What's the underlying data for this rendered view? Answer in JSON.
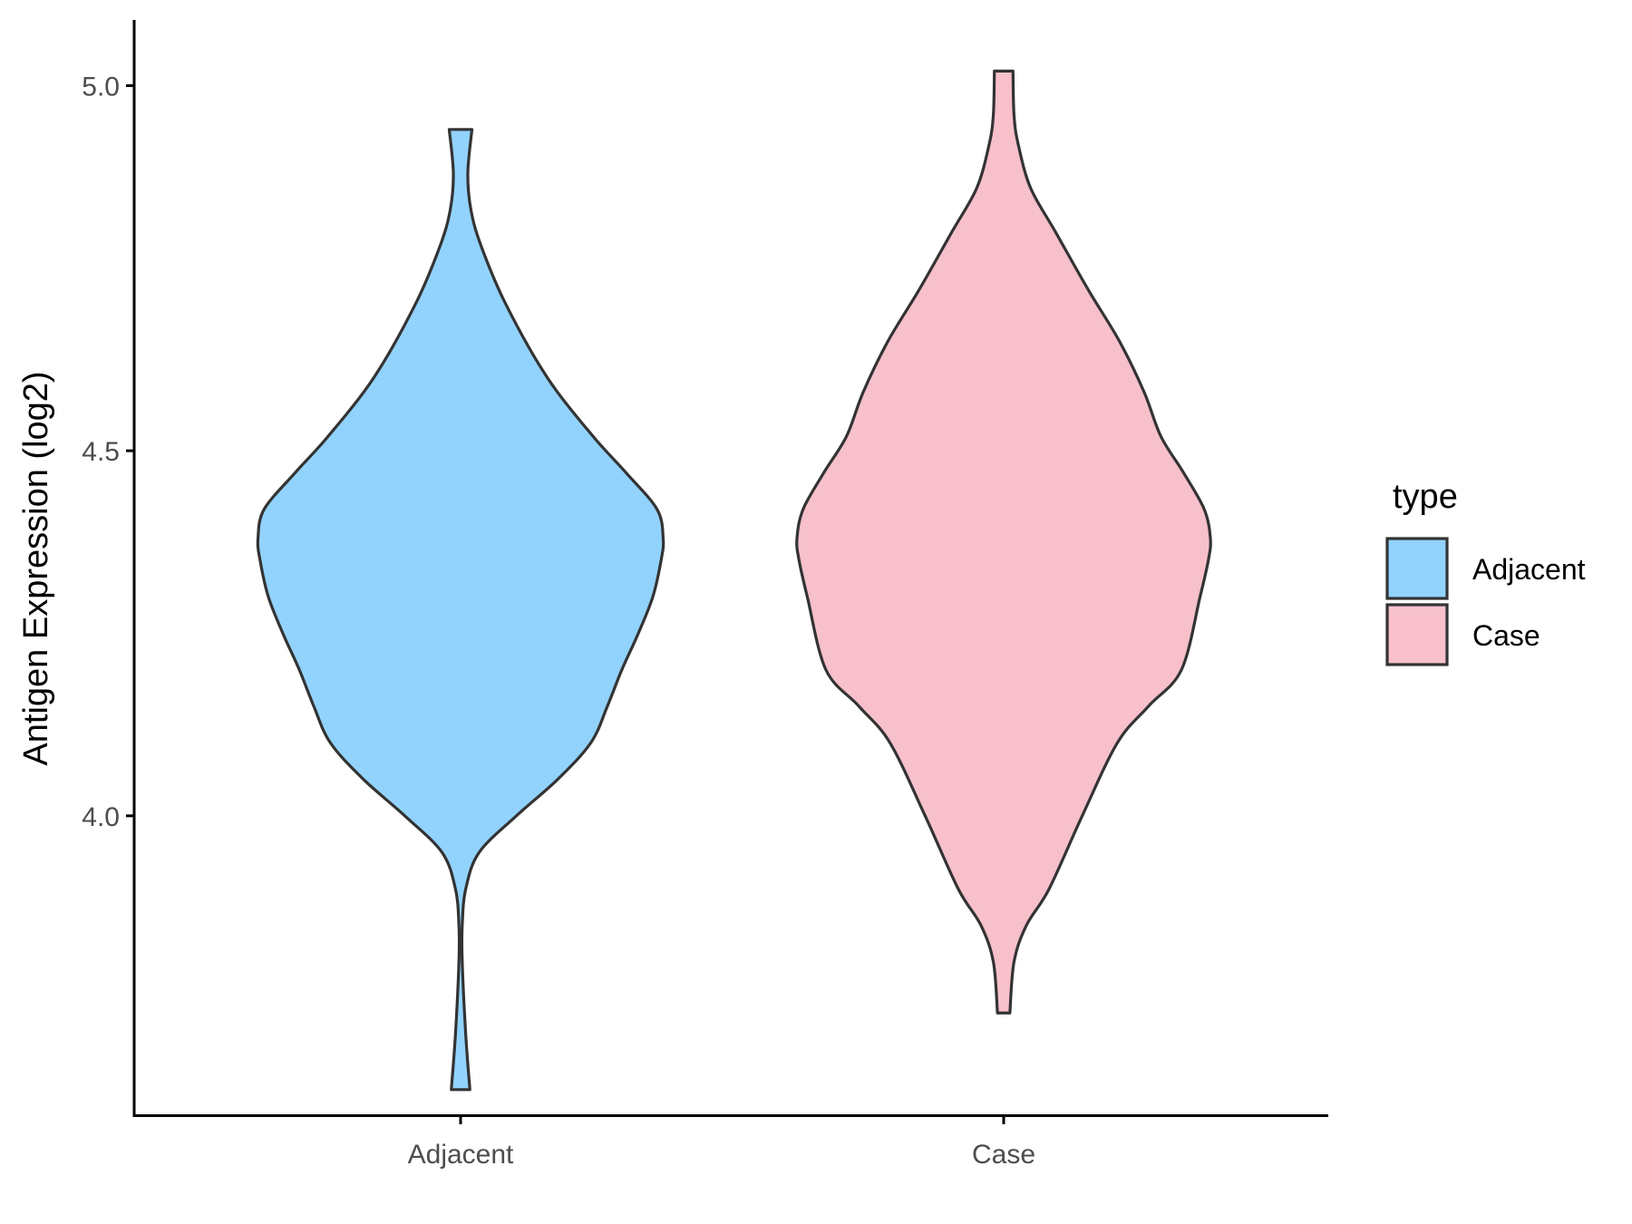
{
  "chart_data": {
    "type": "violin",
    "title": "",
    "xlabel": "",
    "ylabel": "Antigen Expression (log2)",
    "categories": [
      "Adjacent",
      "Case"
    ],
    "ylim": [
      3.59,
      5.09
    ],
    "yticks": [
      {
        "value": 4.0,
        "label": "4.0"
      },
      {
        "value": 4.5,
        "label": "4.5"
      },
      {
        "value": 5.0,
        "label": "5.0"
      }
    ],
    "legend": {
      "title": "type",
      "position": "right",
      "entries": [
        {
          "label": "Adjacent",
          "color": "#92d3fd"
        },
        {
          "label": "Case",
          "color": "#f7c0cb"
        }
      ]
    },
    "grid": false,
    "outline_color": "#333333",
    "series": [
      {
        "category": "Adjacent",
        "color": "#92d3fd",
        "min": 3.625,
        "max": 4.94,
        "density": [
          {
            "y": 3.625,
            "w": 0.045
          },
          {
            "y": 3.7,
            "w": 0.025
          },
          {
            "y": 3.8,
            "w": 0.008
          },
          {
            "y": 3.85,
            "w": 0.008
          },
          {
            "y": 3.9,
            "w": 0.025
          },
          {
            "y": 3.95,
            "w": 0.09
          },
          {
            "y": 4.0,
            "w": 0.27
          },
          {
            "y": 4.05,
            "w": 0.47
          },
          {
            "y": 4.1,
            "w": 0.63
          },
          {
            "y": 4.15,
            "w": 0.71
          },
          {
            "y": 4.2,
            "w": 0.78
          },
          {
            "y": 4.25,
            "w": 0.86
          },
          {
            "y": 4.3,
            "w": 0.93
          },
          {
            "y": 4.35,
            "w": 0.97
          },
          {
            "y": 4.38,
            "w": 0.98
          },
          {
            "y": 4.42,
            "w": 0.95
          },
          {
            "y": 4.47,
            "w": 0.8
          },
          {
            "y": 4.52,
            "w": 0.64
          },
          {
            "y": 4.6,
            "w": 0.42
          },
          {
            "y": 4.7,
            "w": 0.22
          },
          {
            "y": 4.78,
            "w": 0.1
          },
          {
            "y": 4.83,
            "w": 0.05
          },
          {
            "y": 4.88,
            "w": 0.035
          },
          {
            "y": 4.94,
            "w": 0.055
          }
        ]
      },
      {
        "category": "Case",
        "color": "#f7c0cb",
        "min": 3.73,
        "max": 5.02,
        "density": [
          {
            "y": 3.73,
            "w": 0.03
          },
          {
            "y": 3.8,
            "w": 0.05
          },
          {
            "y": 3.85,
            "w": 0.11
          },
          {
            "y": 3.9,
            "w": 0.22
          },
          {
            "y": 4.0,
            "w": 0.38
          },
          {
            "y": 4.1,
            "w": 0.55
          },
          {
            "y": 4.15,
            "w": 0.7
          },
          {
            "y": 4.2,
            "w": 0.86
          },
          {
            "y": 4.3,
            "w": 0.95
          },
          {
            "y": 4.35,
            "w": 0.99
          },
          {
            "y": 4.38,
            "w": 1.0
          },
          {
            "y": 4.42,
            "w": 0.97
          },
          {
            "y": 4.47,
            "w": 0.87
          },
          {
            "y": 4.52,
            "w": 0.76
          },
          {
            "y": 4.58,
            "w": 0.68
          },
          {
            "y": 4.65,
            "w": 0.56
          },
          {
            "y": 4.72,
            "w": 0.41
          },
          {
            "y": 4.8,
            "w": 0.25
          },
          {
            "y": 4.86,
            "w": 0.13
          },
          {
            "y": 4.92,
            "w": 0.07
          },
          {
            "y": 4.96,
            "w": 0.05
          },
          {
            "y": 5.02,
            "w": 0.045
          }
        ]
      }
    ]
  }
}
